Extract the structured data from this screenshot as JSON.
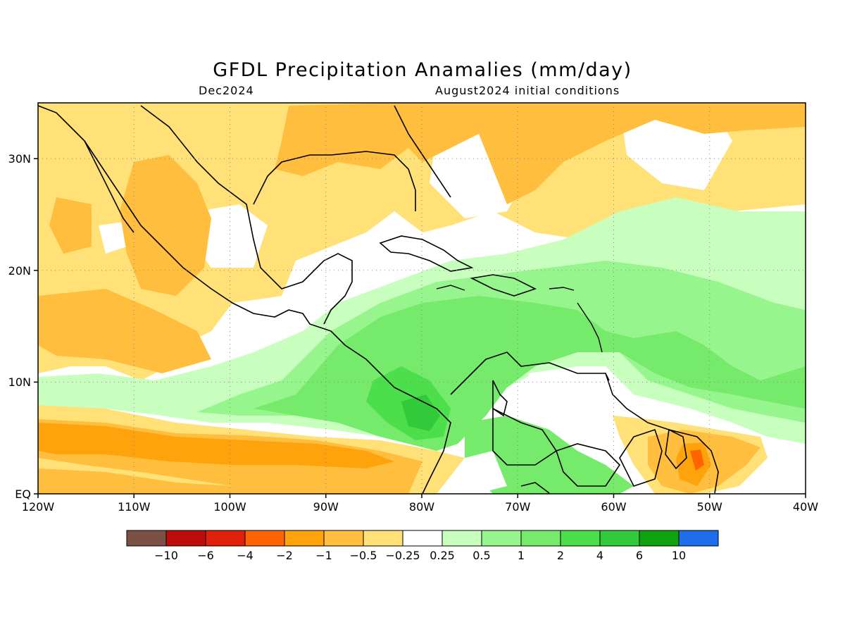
{
  "title": "GFDL Precipitation Anamalies (mm/day)",
  "subtitle_left": "Dec2024",
  "subtitle_right": "August2024 initial conditions",
  "map": {
    "lon_labels": [
      "120W",
      "110W",
      "100W",
      "90W",
      "80W",
      "70W",
      "60W",
      "50W",
      "40W"
    ],
    "lat_labels": [
      "EQ",
      "10N",
      "20N",
      "30N"
    ],
    "gridlines": "dotted"
  },
  "legend": {
    "colors": [
      "#7b5145",
      "#be0c0c",
      "#e12009",
      "#ff6400",
      "#ffa30d",
      "#ffbe3d",
      "#ffe178",
      "#ffffff",
      "#c8ffbe",
      "#96f58c",
      "#76ea6a",
      "#4ddf4b",
      "#32c93a",
      "#0fa20f",
      "#1e6eeb"
    ],
    "labels": [
      "−10",
      "−6",
      "−4",
      "−2",
      "−1",
      "−0.5",
      "−0.25",
      "0.25",
      "0.5",
      "1",
      "2",
      "4",
      "6",
      "10"
    ]
  }
}
